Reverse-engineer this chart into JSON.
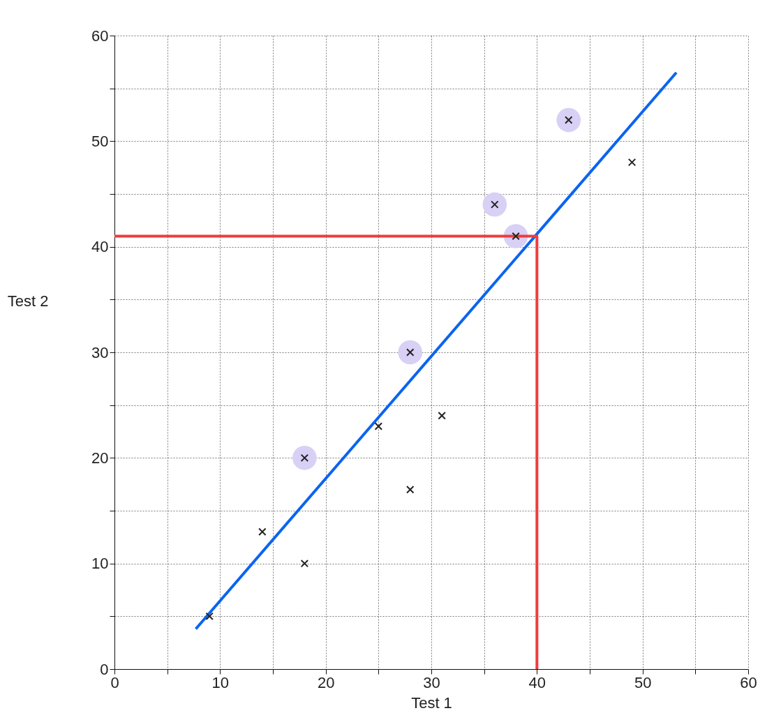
{
  "chart_data": {
    "type": "scatter",
    "xlabel": "Test 1",
    "ylabel": "Test 2",
    "xlim": [
      0,
      60
    ],
    "ylim": [
      0,
      60
    ],
    "xticks": [
      0,
      {
        "value": 5,
        "label": null
      },
      10,
      {
        "value": 15,
        "label": null
      },
      20,
      {
        "value": 25,
        "label": null
      },
      30,
      {
        "value": 35,
        "label": null
      },
      40,
      {
        "value": 45,
        "label": null
      },
      50,
      {
        "value": 55,
        "label": null
      },
      60
    ],
    "yticks": [
      0,
      {
        "value": 5,
        "label": null
      },
      10,
      {
        "value": 15,
        "label": null
      },
      20,
      {
        "value": 25,
        "label": null
      },
      30,
      {
        "value": 35,
        "label": null
      },
      40,
      {
        "value": 45,
        "label": null
      },
      50,
      {
        "value": 55,
        "label": null
      },
      60
    ],
    "grid": true,
    "legend": false,
    "series": [
      {
        "marker": "circle",
        "color": "#d9d0f5",
        "x": [
          18,
          28,
          36,
          38,
          43
        ],
        "values": [
          20,
          30,
          44,
          41,
          52
        ]
      },
      {
        "type": "line",
        "color": "#0a64f0",
        "x": [
          7.7,
          53.2
        ],
        "values": [
          3.8,
          56.5
        ]
      },
      {
        "type": "line",
        "color": "#f03c3c",
        "x": [
          0,
          40,
          40
        ],
        "values": [
          41,
          41,
          0
        ]
      },
      {
        "marker": "cross",
        "color": "#222222",
        "x": [
          9,
          14,
          18,
          18,
          25,
          28,
          28,
          31,
          36,
          38,
          43,
          49
        ],
        "values": [
          5,
          13,
          10,
          20,
          23,
          17,
          30,
          24,
          44,
          41,
          52,
          48
        ]
      }
    ]
  }
}
